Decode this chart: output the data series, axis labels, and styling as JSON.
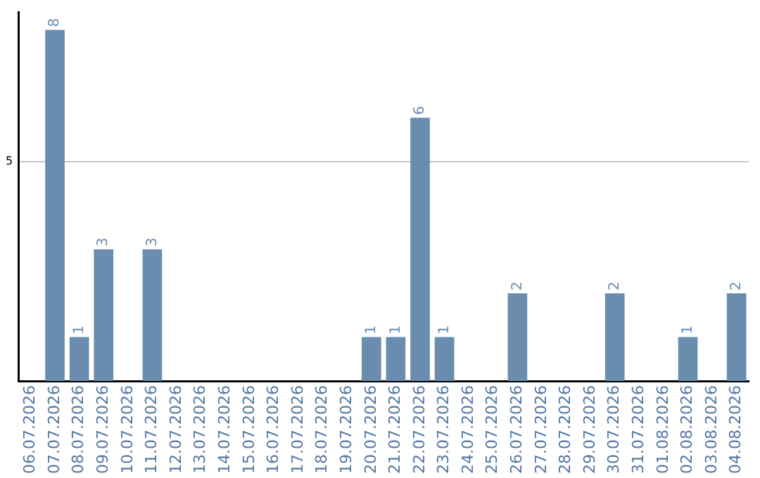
{
  "chart_data": {
    "type": "bar",
    "categories": [
      "06.07.2026",
      "07.07.2026",
      "08.07.2026",
      "09.07.2026",
      "10.07.2026",
      "11.07.2026",
      "12.07.2026",
      "13.07.2026",
      "14.07.2026",
      "15.07.2026",
      "16.07.2026",
      "17.07.2026",
      "18.07.2026",
      "19.07.2026",
      "20.07.2026",
      "21.07.2026",
      "22.07.2026",
      "23.07.2026",
      "24.07.2026",
      "25.07.2026",
      "26.07.2026",
      "27.07.2026",
      "28.07.2026",
      "29.07.2026",
      "30.07.2026",
      "31.07.2026",
      "01.08.2026",
      "02.08.2026",
      "03.08.2026",
      "04.08.2026"
    ],
    "values": [
      0,
      8,
      1,
      3,
      0,
      3,
      0,
      0,
      0,
      0,
      0,
      0,
      0,
      0,
      1,
      1,
      6,
      1,
      0,
      0,
      2,
      0,
      0,
      0,
      2,
      0,
      0,
      1,
      0,
      2
    ],
    "value_labels": [
      null,
      "8",
      "1",
      "3",
      null,
      "3",
      null,
      null,
      null,
      null,
      null,
      null,
      null,
      null,
      "1",
      "1",
      "6",
      "1",
      null,
      null,
      "2",
      null,
      null,
      null,
      "2",
      null,
      null,
      "1",
      null,
      "2"
    ],
    "color": "#6a8caf",
    "ylim": [
      0,
      8.4
    ],
    "yticks": [
      5
    ],
    "grid": "y",
    "legend": false
  }
}
